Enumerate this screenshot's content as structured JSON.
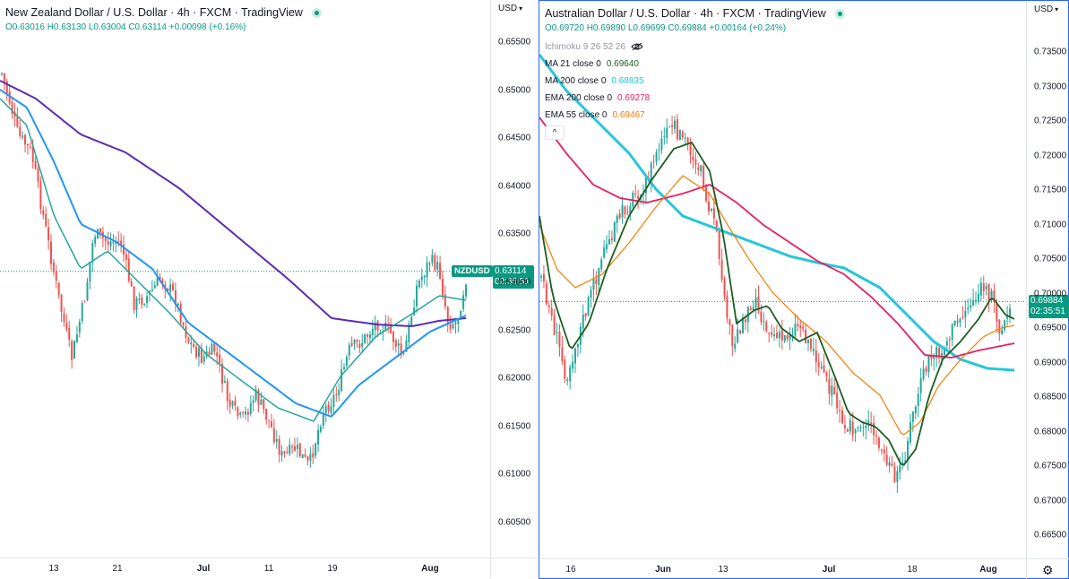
{
  "left": {
    "title": "New Zealand Dollar / U.S. Dollar · 4h · FXCM · TradingView",
    "ohlc": "O0.63016  H0.63130  L0.63004  C0.63114  +0.00098 (+0.16%)",
    "currency": "USD",
    "symbol": "NZDUSD",
    "last_price": "0.63114",
    "countdown": "02:35:51",
    "price_value": 0.63114,
    "y_ticks": [
      "0.65500",
      "0.65000",
      "0.64500",
      "0.64000",
      "0.63500",
      "0.63000",
      "0.62500",
      "0.62000",
      "0.61500",
      "0.61000",
      "0.60500"
    ],
    "y_values": [
      0.655,
      0.65,
      0.645,
      0.64,
      0.635,
      0.63,
      0.625,
      0.62,
      0.615,
      0.61,
      0.605
    ],
    "x_ticks": [
      "13",
      "21",
      "Jul",
      "11",
      "19",
      "Aug"
    ],
    "colors": {
      "ma_long": "#5b2bb3",
      "ma_mid": "#2196f3",
      "ma_short": "#26a69a",
      "up": "#26a69a",
      "down": "#ef5350"
    }
  },
  "right": {
    "title": "Australian Dollar / U.S. Dollar · 4h · FXCM · TradingView",
    "ohlc": "O0.69720  H0.69890  L0.69699  C0.69884  +0.00164 (+0.24%)",
    "currency": "USD",
    "last_price": "0.69884",
    "countdown": "02:35:51",
    "price_value": 0.69884,
    "indicators": [
      {
        "label": "Ichimoku 9 26 52 26",
        "value": "",
        "color": "#9598a1",
        "muted": true
      },
      {
        "label": "MA 21 close 0",
        "value": "0.69640",
        "color": "#1b5e20"
      },
      {
        "label": "MA 200 close 0",
        "value": "0.68835",
        "color": "#26c6da"
      },
      {
        "label": "EMA 200 close 0",
        "value": "0.69278",
        "color": "#e91e63"
      },
      {
        "label": "EMA 55 close 0",
        "value": "0.69467",
        "color": "#f57c00"
      }
    ],
    "collapse_label": "^",
    "y_ticks": [
      "0.73500",
      "0.73000",
      "0.72500",
      "0.72000",
      "0.71500",
      "0.71000",
      "0.70500",
      "0.70000",
      "0.69500",
      "0.69000",
      "0.68500",
      "0.68000",
      "0.67500",
      "0.67000",
      "0.66500"
    ],
    "y_values": [
      0.735,
      0.73,
      0.725,
      0.72,
      0.715,
      0.71,
      0.705,
      0.7,
      0.695,
      0.69,
      0.685,
      0.68,
      0.675,
      0.67,
      0.665
    ],
    "x_ticks": [
      "16",
      "Jun",
      "13",
      "Jul",
      "18",
      "Aug"
    ],
    "settings_icon": "gear-icon"
  }
}
